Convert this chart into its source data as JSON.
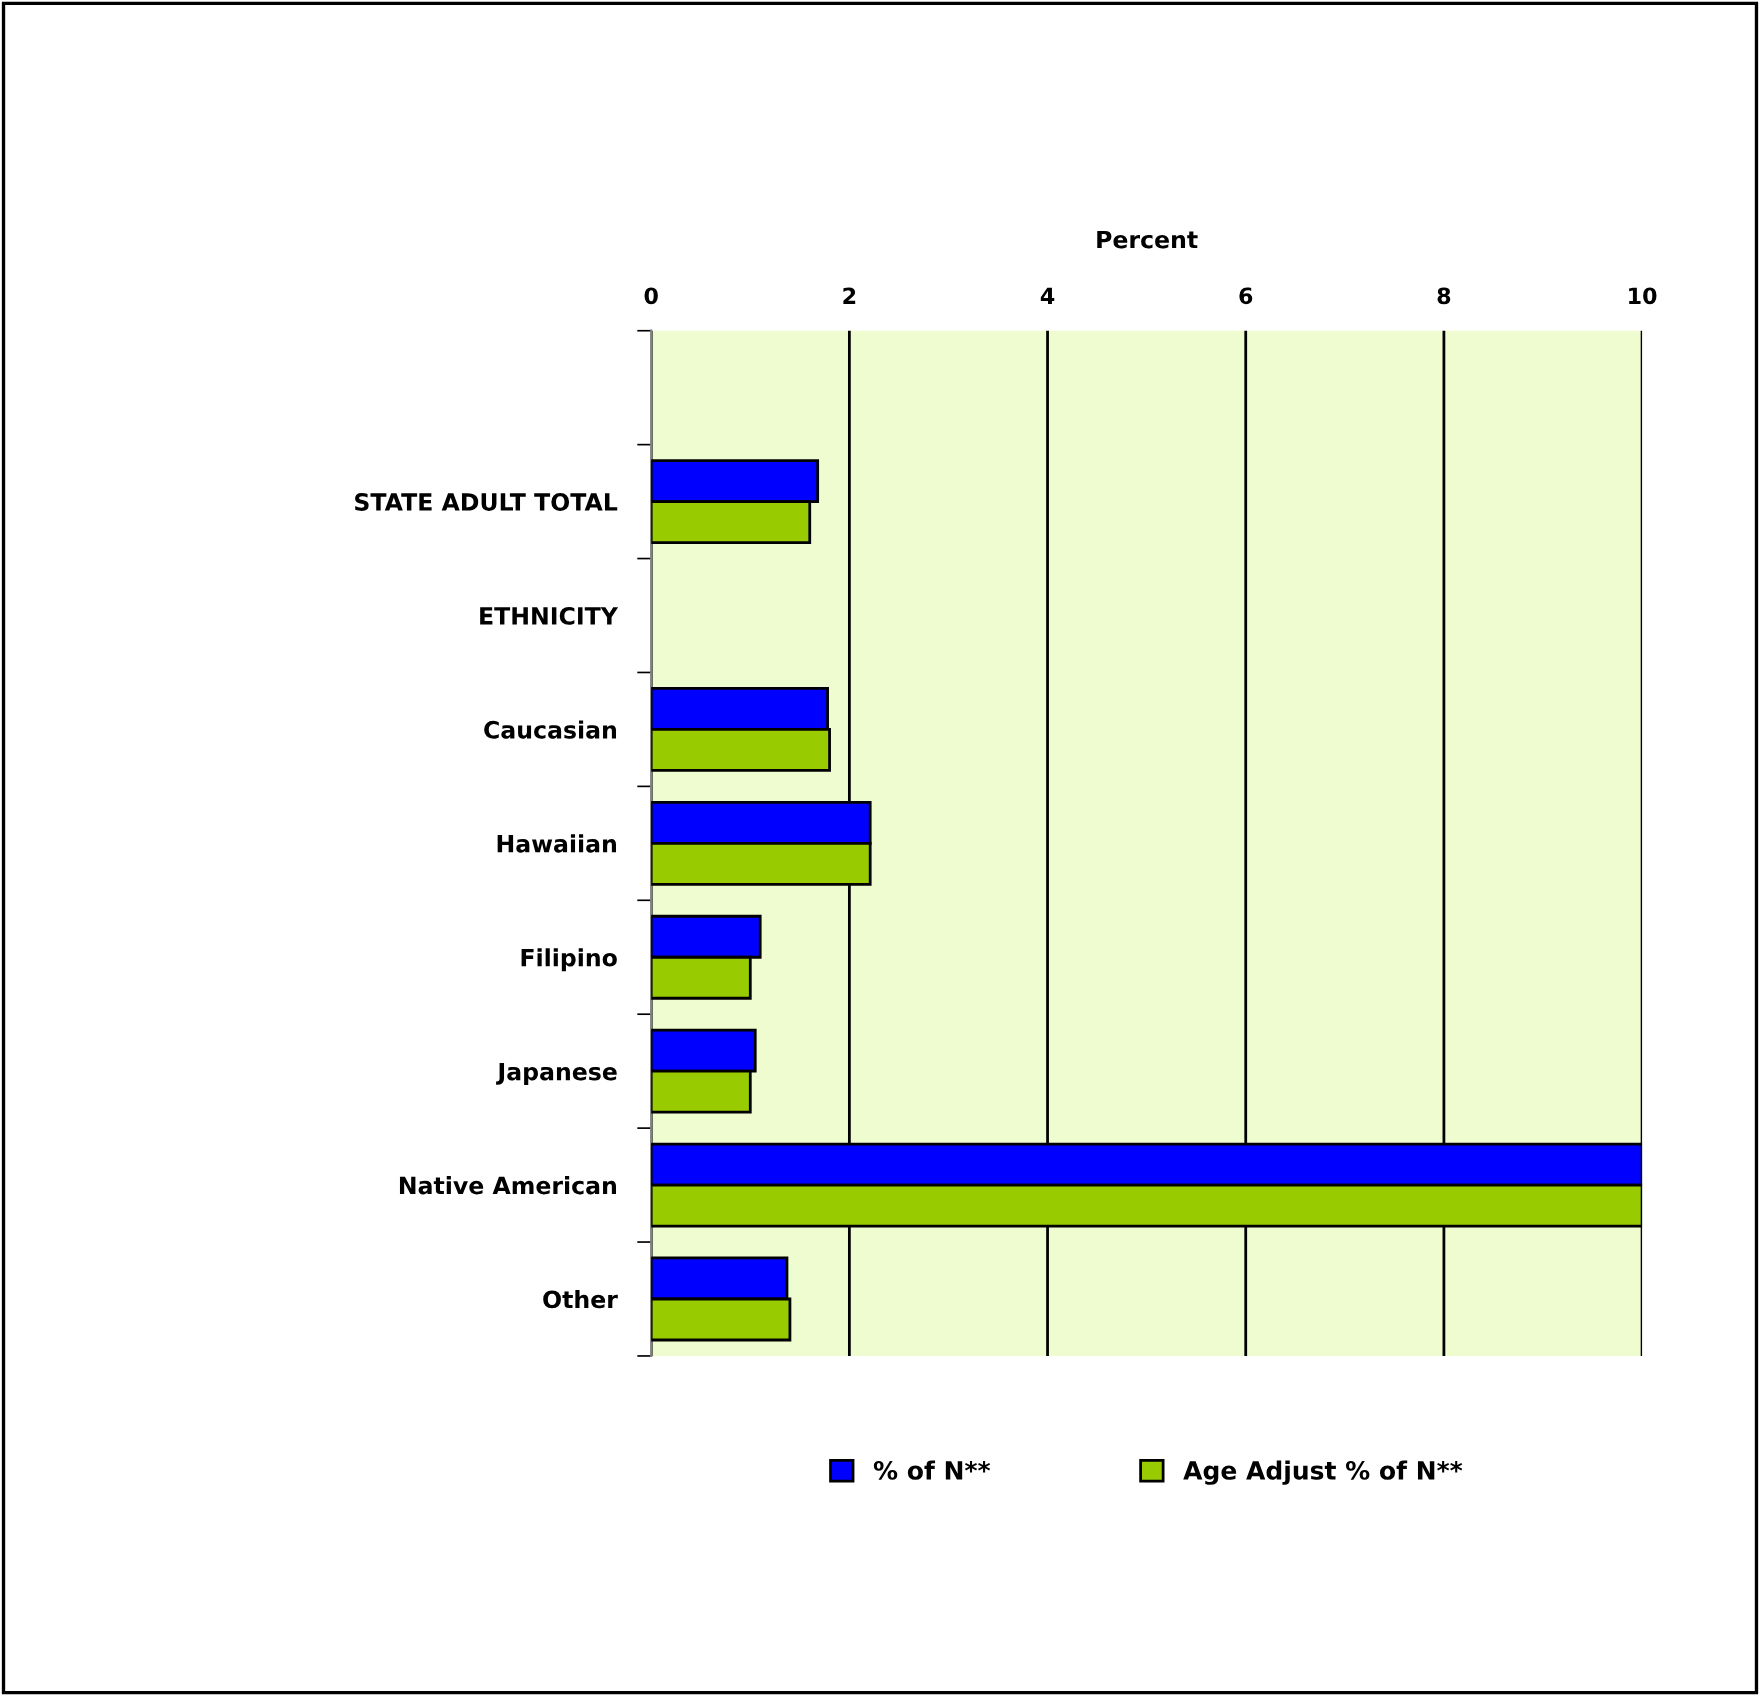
{
  "chart_data": {
    "type": "bar",
    "orientation": "horizontal",
    "xlabel": "Percent",
    "categories": [
      null,
      "STATE ADULT TOTAL",
      "ETHNICITY",
      "Caucasian",
      "Hawaiian",
      "Filipino",
      "Japanese",
      "Native American",
      "Other"
    ],
    "series": [
      {
        "name": "% of N**",
        "color": "#0000ff",
        "values": [
          null,
          1.68,
          null,
          1.78,
          2.21,
          1.1,
          1.05,
          10,
          1.37
        ]
      },
      {
        "name": "Age Adjust % of N**",
        "color": "#99cc00",
        "values": [
          null,
          1.6,
          null,
          1.8,
          2.21,
          1.0,
          1.0,
          10,
          1.4
        ]
      }
    ],
    "xlim": [
      0,
      10
    ],
    "xticks": [
      0,
      2,
      4,
      6,
      8,
      10
    ],
    "grid": "x",
    "legend": "bottom"
  }
}
